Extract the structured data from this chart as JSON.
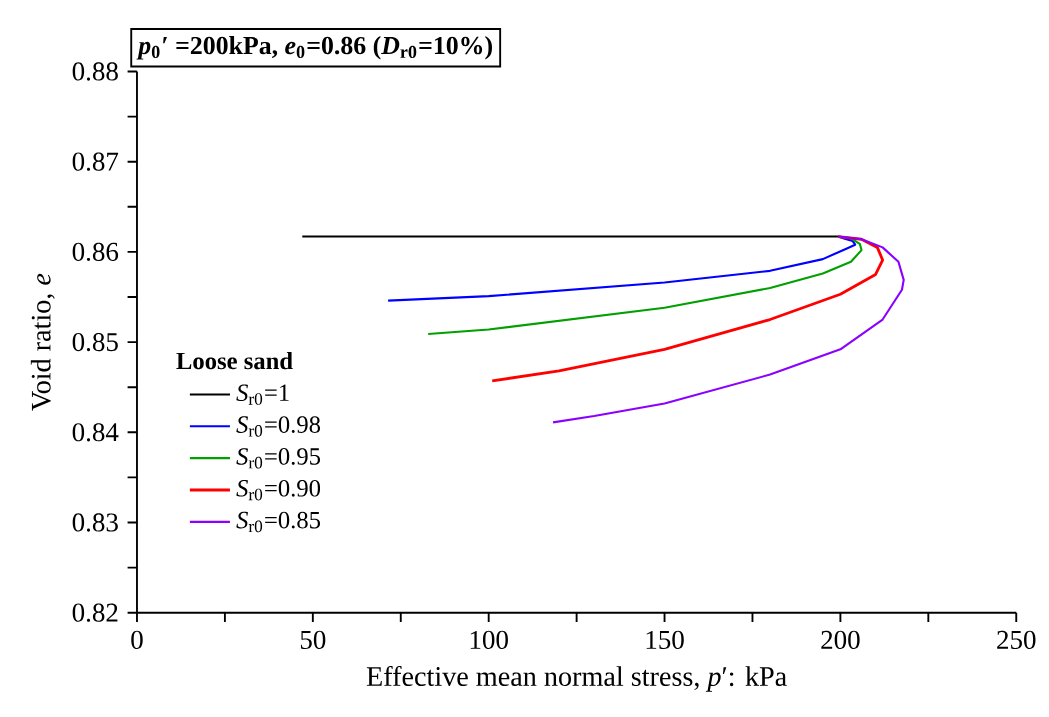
{
  "chart_data": {
    "type": "line",
    "title": "*p*$_{0}$′ =200kPa, *e*$_{0}$=0.86 (*D*$_{r0}$=10%)",
    "xlabel": "Effective mean normal stress, *p*′: kPa",
    "ylabel": "Void ratio, *e*",
    "legend_title": "Loose sand",
    "legend": "left",
    "grid": false,
    "marker": "none",
    "line_style": "solid",
    "xlim": [
      0,
      250
    ],
    "xticks": [
      0,
      {
        "value": 25,
        "label": null
      },
      50,
      {
        "value": 75,
        "label": null
      },
      100,
      {
        "value": 125,
        "label": null
      },
      150,
      {
        "value": 175,
        "label": null
      },
      200,
      {
        "value": 225,
        "label": null
      },
      250
    ],
    "ylim": [
      0.82,
      0.88
    ],
    "yticks": [
      0.82,
      {
        "value": 0.825,
        "label": null
      },
      0.83,
      {
        "value": 0.835,
        "label": null
      },
      0.84,
      {
        "value": 0.845,
        "label": null
      },
      0.85,
      {
        "value": 0.855,
        "label": null
      },
      0.86,
      {
        "value": 0.865,
        "label": null
      },
      0.87,
      {
        "value": 0.875,
        "label": null
      },
      0.88
    ],
    "series": [
      {
        "name": "*S*$_{r0}$=1",
        "color": "#000000",
        "x": [
          47,
          100,
          150,
          199.4
        ],
        "values": [
          0.8617,
          0.8617,
          0.8617,
          0.8617
        ]
      },
      {
        "name": "*S*$_{r0}$=0.98",
        "color": "#0000ff",
        "x": [
          71.4,
          100,
          150,
          180,
          195,
          202,
          204.2,
          203.5,
          201,
          199.4
        ],
        "values": [
          0.8546,
          0.8551,
          0.8566,
          0.8579,
          0.8592,
          0.8604,
          0.8608,
          0.8612,
          0.8615,
          0.8617
        ]
      },
      {
        "name": "*S*$_{r0}$=0.95",
        "color": "#00a000",
        "x": [
          82.8,
          100,
          150,
          180,
          195,
          203,
          206,
          205.5,
          203,
          199.4
        ],
        "values": [
          0.8509,
          0.8514,
          0.8538,
          0.856,
          0.8576,
          0.8589,
          0.8602,
          0.8609,
          0.8615,
          0.8617
        ]
      },
      {
        "name": "*S*$_{r0}$=0.90",
        "color": "#ff0000",
        "x": [
          101,
          120,
          150,
          180,
          200,
          210,
          212,
          210.5,
          206,
          199.4
        ],
        "values": [
          0.8457,
          0.8468,
          0.8492,
          0.8525,
          0.8553,
          0.8575,
          0.8591,
          0.8605,
          0.8614,
          0.8617
        ]
      },
      {
        "name": "*S*$_{r0}$=0.85",
        "color": "#8b00ff",
        "x": [
          118.3,
          130,
          150,
          180,
          200,
          212,
          217.5,
          218,
          216.5,
          212,
          206,
          199.4
        ],
        "values": [
          0.8411,
          0.8418,
          0.8432,
          0.8464,
          0.8492,
          0.8525,
          0.8558,
          0.8569,
          0.8589,
          0.8605,
          0.8614,
          0.8617
        ]
      }
    ]
  }
}
